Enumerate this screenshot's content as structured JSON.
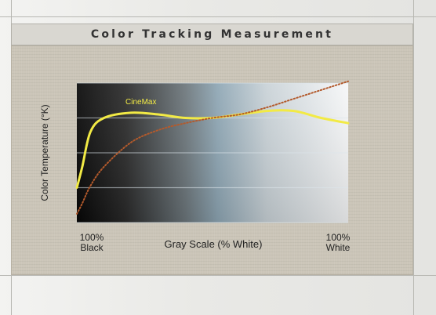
{
  "title": "Color Tracking Measurement",
  "chart_data": {
    "type": "line",
    "title": "Color Tracking Measurement",
    "ylabel": "Color Temperature (°K)",
    "xlabel": "Gray Scale (% White)",
    "x_left_label": "100%\nBlack",
    "x_right_label": "100%\nWhite",
    "x": [
      0,
      2,
      5,
      10,
      20,
      30,
      40,
      50,
      60,
      70,
      80,
      90,
      100
    ],
    "ylim": [
      0,
      4
    ],
    "y_gridlines": [
      0,
      1,
      2,
      3,
      4
    ],
    "grid": true,
    "legend": "none",
    "series": [
      {
        "name": "CineMax",
        "color": "#f2ea45",
        "values": [
          1.0,
          1.6,
          2.6,
          3.0,
          3.15,
          3.1,
          3.0,
          3.0,
          3.1,
          3.2,
          3.2,
          3.0,
          2.85
        ]
      },
      {
        "color": "#b35a2c",
        "values": [
          0.25,
          0.55,
          1.05,
          1.6,
          2.3,
          2.65,
          2.85,
          3.0,
          3.1,
          3.3,
          3.55,
          3.8,
          4.05
        ]
      }
    ]
  }
}
